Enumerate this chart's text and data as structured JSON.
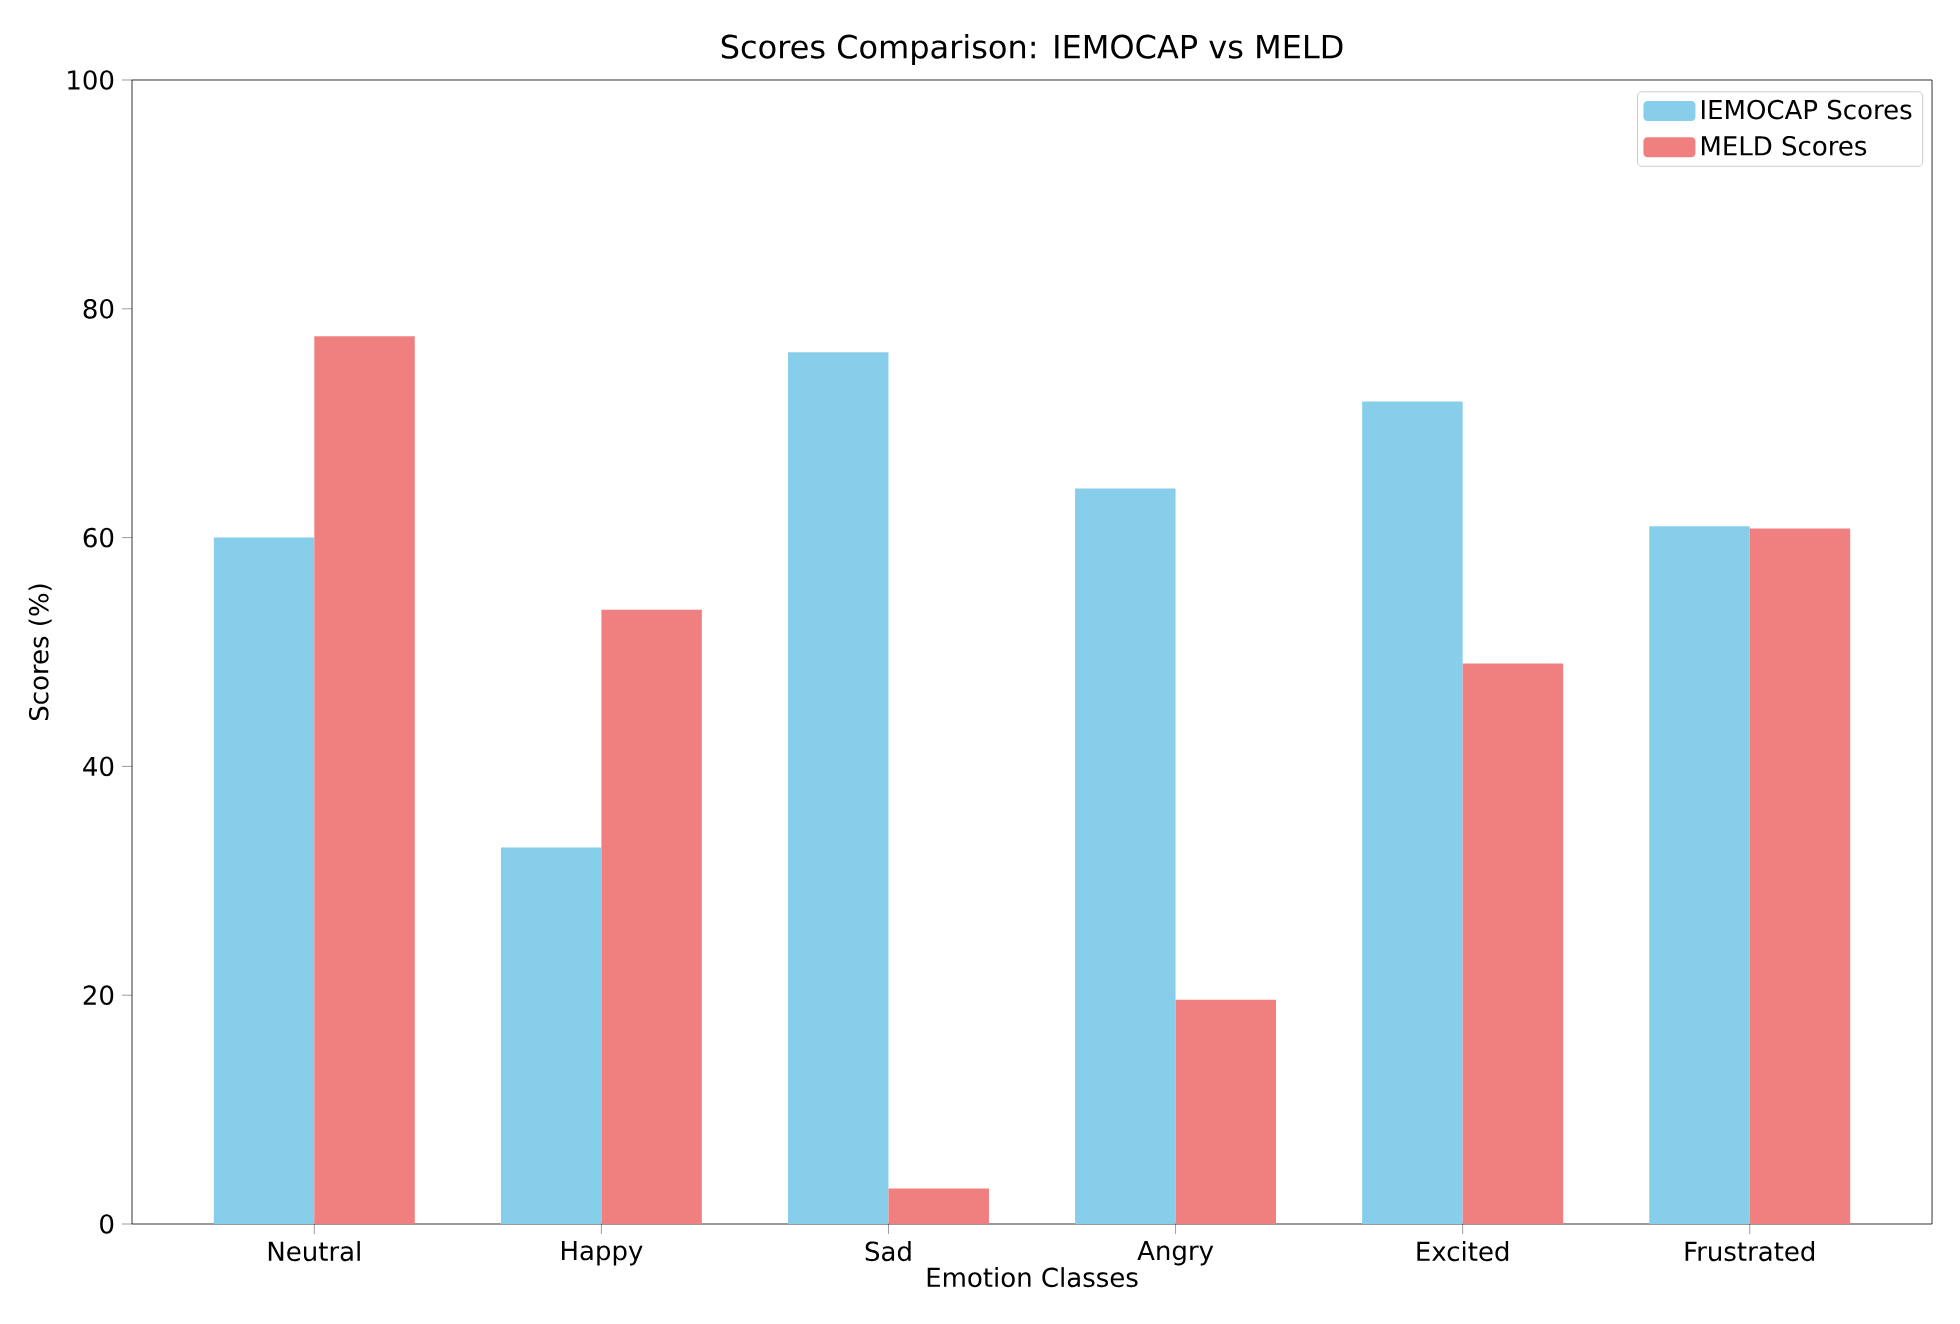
{
  "chart_data": {
    "type": "bar",
    "title": "Scores Comparison: IEMOCAP vs MELD",
    "xlabel": "Emotion Classes",
    "ylabel": "Scores (%)",
    "categories": [
      "Neutral",
      "Happy",
      "Sad",
      "Angry",
      "Excited",
      "Frustrated"
    ],
    "series": [
      {
        "name": "IEMOCAP Scores",
        "color": "#87ceeb",
        "values": [
          60.0,
          32.9,
          76.2,
          64.3,
          71.9,
          61.0
        ]
      },
      {
        "name": "MELD Scores",
        "color": "#f08080",
        "values": [
          77.6,
          53.7,
          3.1,
          19.6,
          49.0,
          60.8
        ]
      }
    ],
    "ylim": [
      0,
      100
    ],
    "yticks": [
      0,
      20,
      40,
      60,
      80,
      100
    ],
    "grid": false,
    "legend": "top right"
  }
}
